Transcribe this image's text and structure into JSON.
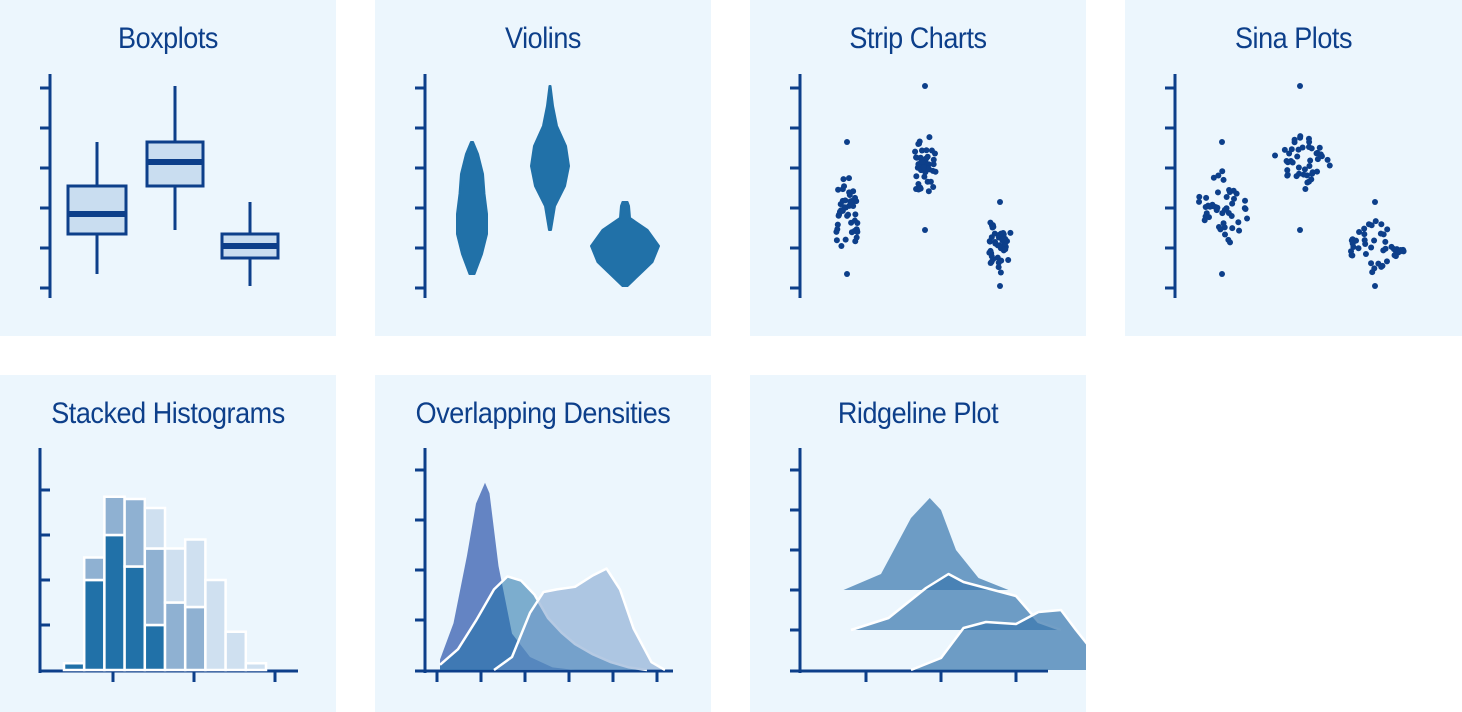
{
  "colors": {
    "axis": "#0d3f8a",
    "dark": "#2171a8",
    "box_fill": "#c9ddf0",
    "point": "#0d3f8a",
    "panel_bg": "#ecf6fd"
  },
  "chart_data": [
    {
      "type": "box",
      "title": "Boxplots",
      "ylim": [
        0,
        5.4
      ],
      "groups": [
        {
          "x": 0,
          "whisker_low": 0.3,
          "q1": 1.3,
          "median": 1.8,
          "q3": 2.5,
          "whisker_high": 3.6
        },
        {
          "x": 1,
          "whisker_low": 1.4,
          "q1": 2.5,
          "median": 3.1,
          "q3": 3.6,
          "whisker_high": 5.0
        },
        {
          "x": 2,
          "whisker_low": 0.0,
          "q1": 0.7,
          "median": 1.0,
          "q3": 1.3,
          "whisker_high": 2.1
        }
      ]
    },
    {
      "type": "violin",
      "title": "Violins",
      "ylim": [
        0,
        5.4
      ],
      "groups": [
        {
          "x": 0,
          "y": [
            0.3,
            0.8,
            1.3,
            1.8,
            2.3,
            2.8,
            3.3,
            3.6
          ],
          "width": [
            0.05,
            0.2,
            0.3,
            0.3,
            0.25,
            0.22,
            0.12,
            0.02
          ]
        },
        {
          "x": 1,
          "y": [
            1.4,
            2.0,
            2.5,
            3.0,
            3.5,
            4.0,
            4.5,
            5.0
          ],
          "width": [
            0.02,
            0.1,
            0.3,
            0.38,
            0.32,
            0.14,
            0.06,
            0.01
          ]
        },
        {
          "x": 2,
          "y": [
            0.0,
            0.3,
            0.6,
            1.0,
            1.4,
            1.7,
            2.0,
            2.1
          ],
          "width": [
            0.05,
            0.3,
            0.55,
            0.68,
            0.45,
            0.1,
            0.08,
            0.05
          ]
        }
      ]
    },
    {
      "type": "strip",
      "title": "Strip Charts",
      "ylim": [
        0,
        5.4
      ],
      "groups": [
        {
          "x": 0,
          "n": 48,
          "center": 1.9,
          "spread": 0.9,
          "min": 0.3,
          "max": 3.6
        },
        {
          "x": 1,
          "n": 48,
          "center": 3.1,
          "spread": 0.6,
          "min": 1.4,
          "max": 5.0
        },
        {
          "x": 2,
          "n": 48,
          "center": 1.0,
          "spread": 0.5,
          "min": 0.0,
          "max": 2.1
        }
      ]
    },
    {
      "type": "sina",
      "title": "Sina Plots",
      "ylim": [
        0,
        5.4
      ],
      "groups": [
        {
          "x": 0,
          "n": 48,
          "center": 1.9,
          "spread": 0.9,
          "min": 0.3,
          "max": 3.6
        },
        {
          "x": 1,
          "n": 48,
          "center": 3.1,
          "spread": 0.6,
          "min": 1.4,
          "max": 5.0
        },
        {
          "x": 2,
          "n": 48,
          "center": 1.0,
          "spread": 0.5,
          "min": 0.0,
          "max": 2.1
        }
      ]
    },
    {
      "type": "bar",
      "title": "Stacked Histograms",
      "ylim": [
        0,
        5
      ],
      "bins": [
        0,
        1,
        2,
        3,
        4,
        5,
        6,
        7,
        8,
        9
      ],
      "series": [
        {
          "values": [
            0.15,
            2.0,
            3.0,
            2.3,
            1.0,
            0.0,
            0.0,
            0.0,
            0.0,
            0.0
          ]
        },
        {
          "values": [
            0.0,
            0.5,
            0.85,
            1.5,
            1.7,
            1.5,
            1.4,
            0.0,
            0.0,
            0.0
          ]
        },
        {
          "values": [
            0.0,
            0.0,
            0.0,
            0.0,
            0.9,
            1.2,
            1.5,
            2.0,
            0.85,
            0.15
          ]
        }
      ]
    },
    {
      "type": "area",
      "title": "Overlapping Densities",
      "xlim": [
        0,
        5
      ],
      "ylim": [
        0,
        4.2
      ],
      "series": [
        {
          "x": [
            0,
            0.3,
            0.6,
            0.8,
            1.0,
            1.1,
            1.3,
            1.6,
            2.0,
            2.5,
            3.0
          ],
          "y": [
            0.2,
            0.9,
            2.2,
            3.2,
            3.6,
            3.4,
            2.0,
            0.7,
            0.25,
            0.05,
            0.0
          ]
        },
        {
          "x": [
            0,
            0.4,
            0.8,
            1.2,
            1.5,
            1.8,
            2.1,
            2.4,
            2.7,
            3.0,
            3.4,
            3.8,
            4.2,
            4.6
          ],
          "y": [
            0.1,
            0.4,
            0.95,
            1.55,
            1.8,
            1.72,
            1.45,
            1.0,
            0.72,
            0.5,
            0.3,
            0.15,
            0.05,
            0.0
          ]
        },
        {
          "x": [
            1.2,
            1.6,
            2.0,
            2.3,
            2.6,
            3.0,
            3.4,
            3.7,
            4.0,
            4.3,
            4.7,
            5.0
          ],
          "y": [
            0.0,
            0.25,
            1.1,
            1.5,
            1.55,
            1.6,
            1.82,
            1.95,
            1.55,
            0.8,
            0.15,
            0.0
          ]
        }
      ]
    },
    {
      "type": "ridgeline",
      "title": "Ridgeline Plot",
      "xlim": [
        -0.5,
        3.7
      ],
      "ylim": [
        0,
        5.4
      ],
      "series": [
        {
          "baseline": 2.0,
          "x": [
            -0.3,
            0.2,
            0.6,
            0.85,
            1.0,
            1.2,
            1.5,
            1.9
          ],
          "y": [
            0.0,
            0.4,
            1.8,
            2.3,
            2.0,
            1.0,
            0.3,
            0.0
          ]
        },
        {
          "baseline": 1.0,
          "x": [
            -0.2,
            0.3,
            0.8,
            1.1,
            1.3,
            1.7,
            2.0,
            2.3,
            2.6
          ],
          "y": [
            0.0,
            0.3,
            1.05,
            1.4,
            1.2,
            1.0,
            0.85,
            0.2,
            0.0
          ]
        },
        {
          "baseline": 0.0,
          "x": [
            0.6,
            1.0,
            1.3,
            1.6,
            2.0,
            2.3,
            2.6,
            2.8,
            3.1,
            3.3
          ],
          "y": [
            0.0,
            0.3,
            1.05,
            1.2,
            1.15,
            1.45,
            1.5,
            1.0,
            0.3,
            0.0
          ]
        }
      ]
    }
  ]
}
